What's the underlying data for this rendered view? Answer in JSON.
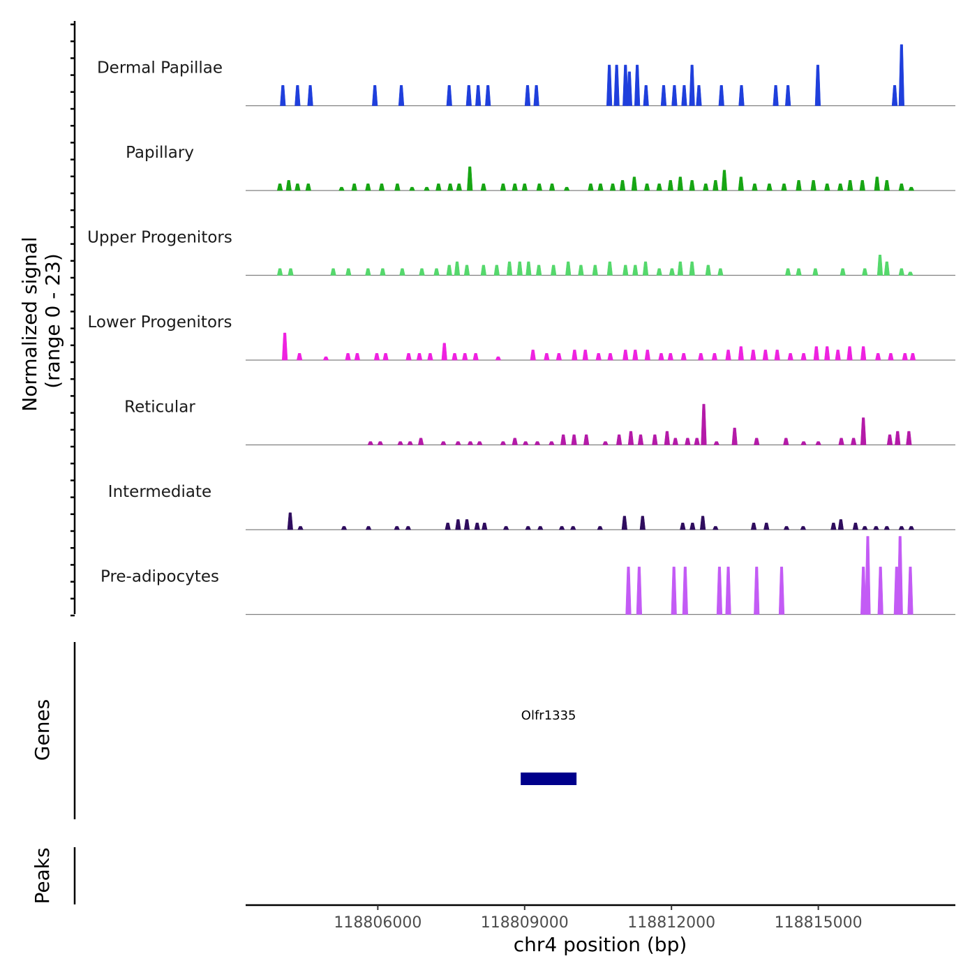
{
  "chart_data": {
    "type": "area",
    "y_axis_label_line1": "Normalized signal",
    "y_axis_label_line2": "(range 0 - 23)",
    "ylim": [
      0,
      23
    ],
    "x_axis_label": "chr4 position (bp)",
    "xlim": [
      118803300,
      118817800
    ],
    "x_ticks": [
      {
        "value": 118806000,
        "label": "118806000"
      },
      {
        "value": 118809000,
        "label": "118809000"
      },
      {
        "value": 118812000,
        "label": "118812000"
      },
      {
        "value": 118815000,
        "label": "118815000"
      }
    ],
    "tracks": [
      {
        "name": "Dermal Papillae",
        "color": "#1f3fdc",
        "peaks": [
          [
            118804060,
            6
          ],
          [
            118804360,
            6
          ],
          [
            118804620,
            6
          ],
          [
            118805940,
            6
          ],
          [
            118806480,
            6
          ],
          [
            118807460,
            6
          ],
          [
            118807860,
            6
          ],
          [
            118808050,
            6
          ],
          [
            118808250,
            6
          ],
          [
            118809060,
            6
          ],
          [
            118809240,
            6
          ],
          [
            118810730,
            12
          ],
          [
            118810880,
            12
          ],
          [
            118811060,
            12
          ],
          [
            118811140,
            10
          ],
          [
            118811300,
            12
          ],
          [
            118811480,
            6
          ],
          [
            118811840,
            6
          ],
          [
            118812060,
            6
          ],
          [
            118812260,
            6
          ],
          [
            118812420,
            12
          ],
          [
            118812560,
            6
          ],
          [
            118813020,
            6
          ],
          [
            118813430,
            6
          ],
          [
            118814130,
            6
          ],
          [
            118814380,
            6
          ],
          [
            118814990,
            12
          ],
          [
            118816560,
            6
          ],
          [
            118816700,
            18
          ]
        ]
      },
      {
        "name": "Papillary",
        "color": "#17a514",
        "peaks": [
          [
            118804000,
            2
          ],
          [
            118804180,
            3
          ],
          [
            118804360,
            2
          ],
          [
            118804580,
            2
          ],
          [
            118805260,
            1
          ],
          [
            118805520,
            2
          ],
          [
            118805800,
            2
          ],
          [
            118806080,
            2
          ],
          [
            118806400,
            2
          ],
          [
            118806700,
            1
          ],
          [
            118807000,
            1
          ],
          [
            118807240,
            2
          ],
          [
            118807480,
            2
          ],
          [
            118807660,
            2
          ],
          [
            118807880,
            7
          ],
          [
            118808160,
            2
          ],
          [
            118808560,
            2
          ],
          [
            118808800,
            2
          ],
          [
            118809000,
            2
          ],
          [
            118809300,
            2
          ],
          [
            118809560,
            2
          ],
          [
            118809860,
            1
          ],
          [
            118810350,
            2
          ],
          [
            118810550,
            2
          ],
          [
            118810800,
            2
          ],
          [
            118811000,
            3
          ],
          [
            118811240,
            4
          ],
          [
            118811500,
            2
          ],
          [
            118811750,
            2
          ],
          [
            118811980,
            3
          ],
          [
            118812180,
            4
          ],
          [
            118812420,
            3
          ],
          [
            118812700,
            2
          ],
          [
            118812900,
            3
          ],
          [
            118813080,
            6
          ],
          [
            118813420,
            4
          ],
          [
            118813700,
            2
          ],
          [
            118814000,
            2
          ],
          [
            118814300,
            2
          ],
          [
            118814600,
            3
          ],
          [
            118814900,
            3
          ],
          [
            118815180,
            2
          ],
          [
            118815450,
            2
          ],
          [
            118815650,
            3
          ],
          [
            118815900,
            3
          ],
          [
            118816200,
            4
          ],
          [
            118816400,
            3
          ],
          [
            118816700,
            2
          ],
          [
            118816900,
            1
          ]
        ]
      },
      {
        "name": "Upper Progenitors",
        "color": "#55d86c",
        "peaks": [
          [
            118804000,
            2
          ],
          [
            118804220,
            2
          ],
          [
            118805090,
            2
          ],
          [
            118805400,
            2
          ],
          [
            118805800,
            2
          ],
          [
            118806100,
            2
          ],
          [
            118806500,
            2
          ],
          [
            118806900,
            2
          ],
          [
            118807200,
            2
          ],
          [
            118807460,
            3
          ],
          [
            118807620,
            4
          ],
          [
            118807820,
            3
          ],
          [
            118808160,
            3
          ],
          [
            118808430,
            3
          ],
          [
            118808690,
            4
          ],
          [
            118808900,
            4
          ],
          [
            118809080,
            4
          ],
          [
            118809290,
            3
          ],
          [
            118809590,
            3
          ],
          [
            118809890,
            4
          ],
          [
            118810150,
            3
          ],
          [
            118810440,
            3
          ],
          [
            118810740,
            4
          ],
          [
            118811060,
            3
          ],
          [
            118811260,
            3
          ],
          [
            118811470,
            4
          ],
          [
            118811750,
            2
          ],
          [
            118812010,
            2
          ],
          [
            118812180,
            4
          ],
          [
            118812420,
            4
          ],
          [
            118812750,
            3
          ],
          [
            118813000,
            2
          ],
          [
            118814380,
            2
          ],
          [
            118814600,
            2
          ],
          [
            118814940,
            2
          ],
          [
            118815500,
            2
          ],
          [
            118815950,
            2
          ],
          [
            118816260,
            6
          ],
          [
            118816400,
            4
          ],
          [
            118816700,
            2
          ],
          [
            118816880,
            1
          ]
        ]
      },
      {
        "name": "Lower Progenitors",
        "color": "#ee22e0",
        "peaks": [
          [
            118804100,
            8
          ],
          [
            118804400,
            2
          ],
          [
            118804940,
            1
          ],
          [
            118805390,
            2
          ],
          [
            118805580,
            2
          ],
          [
            118805980,
            2
          ],
          [
            118806160,
            2
          ],
          [
            118806630,
            2
          ],
          [
            118806850,
            2
          ],
          [
            118807070,
            2
          ],
          [
            118807360,
            5
          ],
          [
            118807570,
            2
          ],
          [
            118807780,
            2
          ],
          [
            118808000,
            2
          ],
          [
            118808460,
            1
          ],
          [
            118809170,
            3
          ],
          [
            118809450,
            2
          ],
          [
            118809700,
            2
          ],
          [
            118810020,
            3
          ],
          [
            118810240,
            3
          ],
          [
            118810510,
            2
          ],
          [
            118810750,
            2
          ],
          [
            118811060,
            3
          ],
          [
            118811260,
            3
          ],
          [
            118811510,
            3
          ],
          [
            118811790,
            2
          ],
          [
            118811980,
            2
          ],
          [
            118812250,
            2
          ],
          [
            118812600,
            2
          ],
          [
            118812880,
            2
          ],
          [
            118813160,
            3
          ],
          [
            118813420,
            4
          ],
          [
            118813670,
            3
          ],
          [
            118813920,
            3
          ],
          [
            118814160,
            3
          ],
          [
            118814430,
            2
          ],
          [
            118814700,
            2
          ],
          [
            118814960,
            4
          ],
          [
            118815180,
            4
          ],
          [
            118815400,
            3
          ],
          [
            118815640,
            4
          ],
          [
            118815920,
            4
          ],
          [
            118816220,
            2
          ],
          [
            118816480,
            2
          ],
          [
            118816770,
            2
          ],
          [
            118816930,
            2
          ]
        ]
      },
      {
        "name": "Reticular",
        "color": "#b41aa8",
        "peaks": [
          [
            118805850,
            1
          ],
          [
            118806050,
            1
          ],
          [
            118806460,
            1
          ],
          [
            118806660,
            1
          ],
          [
            118806880,
            2
          ],
          [
            118807340,
            1
          ],
          [
            118807640,
            1
          ],
          [
            118807890,
            1
          ],
          [
            118808080,
            1
          ],
          [
            118808560,
            1
          ],
          [
            118808800,
            2
          ],
          [
            118809020,
            1
          ],
          [
            118809260,
            1
          ],
          [
            118809550,
            1
          ],
          [
            118809790,
            3
          ],
          [
            118810010,
            3
          ],
          [
            118810260,
            3
          ],
          [
            118810650,
            1
          ],
          [
            118810930,
            3
          ],
          [
            118811170,
            4
          ],
          [
            118811370,
            3
          ],
          [
            118811660,
            3
          ],
          [
            118811910,
            4
          ],
          [
            118812080,
            2
          ],
          [
            118812330,
            2
          ],
          [
            118812520,
            2
          ],
          [
            118812660,
            12
          ],
          [
            118812920,
            1
          ],
          [
            118813290,
            5
          ],
          [
            118813740,
            2
          ],
          [
            118814340,
            2
          ],
          [
            118814700,
            1
          ],
          [
            118815000,
            1
          ],
          [
            118815470,
            2
          ],
          [
            118815720,
            2
          ],
          [
            118815920,
            8
          ],
          [
            118816460,
            3
          ],
          [
            118816620,
            4
          ],
          [
            118816850,
            4
          ]
        ]
      },
      {
        "name": "Intermediate",
        "color": "#2f0d5e",
        "peaks": [
          [
            118804210,
            5
          ],
          [
            118804420,
            1
          ],
          [
            118805310,
            1
          ],
          [
            118805810,
            1
          ],
          [
            118806390,
            1
          ],
          [
            118806620,
            1
          ],
          [
            118807430,
            2
          ],
          [
            118807640,
            3
          ],
          [
            118807820,
            3
          ],
          [
            118808030,
            2
          ],
          [
            118808180,
            2
          ],
          [
            118808620,
            1
          ],
          [
            118809070,
            1
          ],
          [
            118809320,
            1
          ],
          [
            118809760,
            1
          ],
          [
            118809990,
            1
          ],
          [
            118810540,
            1
          ],
          [
            118811040,
            4
          ],
          [
            118811410,
            4
          ],
          [
            118812230,
            2
          ],
          [
            118812430,
            2
          ],
          [
            118812640,
            4
          ],
          [
            118812900,
            1
          ],
          [
            118813680,
            2
          ],
          [
            118813940,
            2
          ],
          [
            118814350,
            1
          ],
          [
            118814690,
            1
          ],
          [
            118815310,
            2
          ],
          [
            118815460,
            3
          ],
          [
            118815760,
            2
          ],
          [
            118815950,
            1
          ],
          [
            118816180,
            1
          ],
          [
            118816400,
            1
          ],
          [
            118816700,
            1
          ],
          [
            118816900,
            1
          ]
        ]
      },
      {
        "name": "Pre-adipocytes",
        "color": "#c35bf5",
        "peaks": [
          [
            118811120,
            14
          ],
          [
            118811340,
            14
          ],
          [
            118812050,
            14
          ],
          [
            118812280,
            14
          ],
          [
            118812980,
            14
          ],
          [
            118813160,
            14
          ],
          [
            118813740,
            14
          ],
          [
            118814250,
            14
          ],
          [
            118815920,
            14
          ],
          [
            118816010,
            23
          ],
          [
            118816270,
            14
          ],
          [
            118816600,
            14
          ],
          [
            118816670,
            23
          ],
          [
            118816880,
            14
          ]
        ]
      }
    ],
    "genes": {
      "label": "Genes",
      "items": [
        {
          "name": "Olfr1335",
          "start": 118808920,
          "end": 118810060,
          "color": "#00008b"
        }
      ]
    },
    "peaks_panel": {
      "label": "Peaks",
      "items": []
    }
  }
}
